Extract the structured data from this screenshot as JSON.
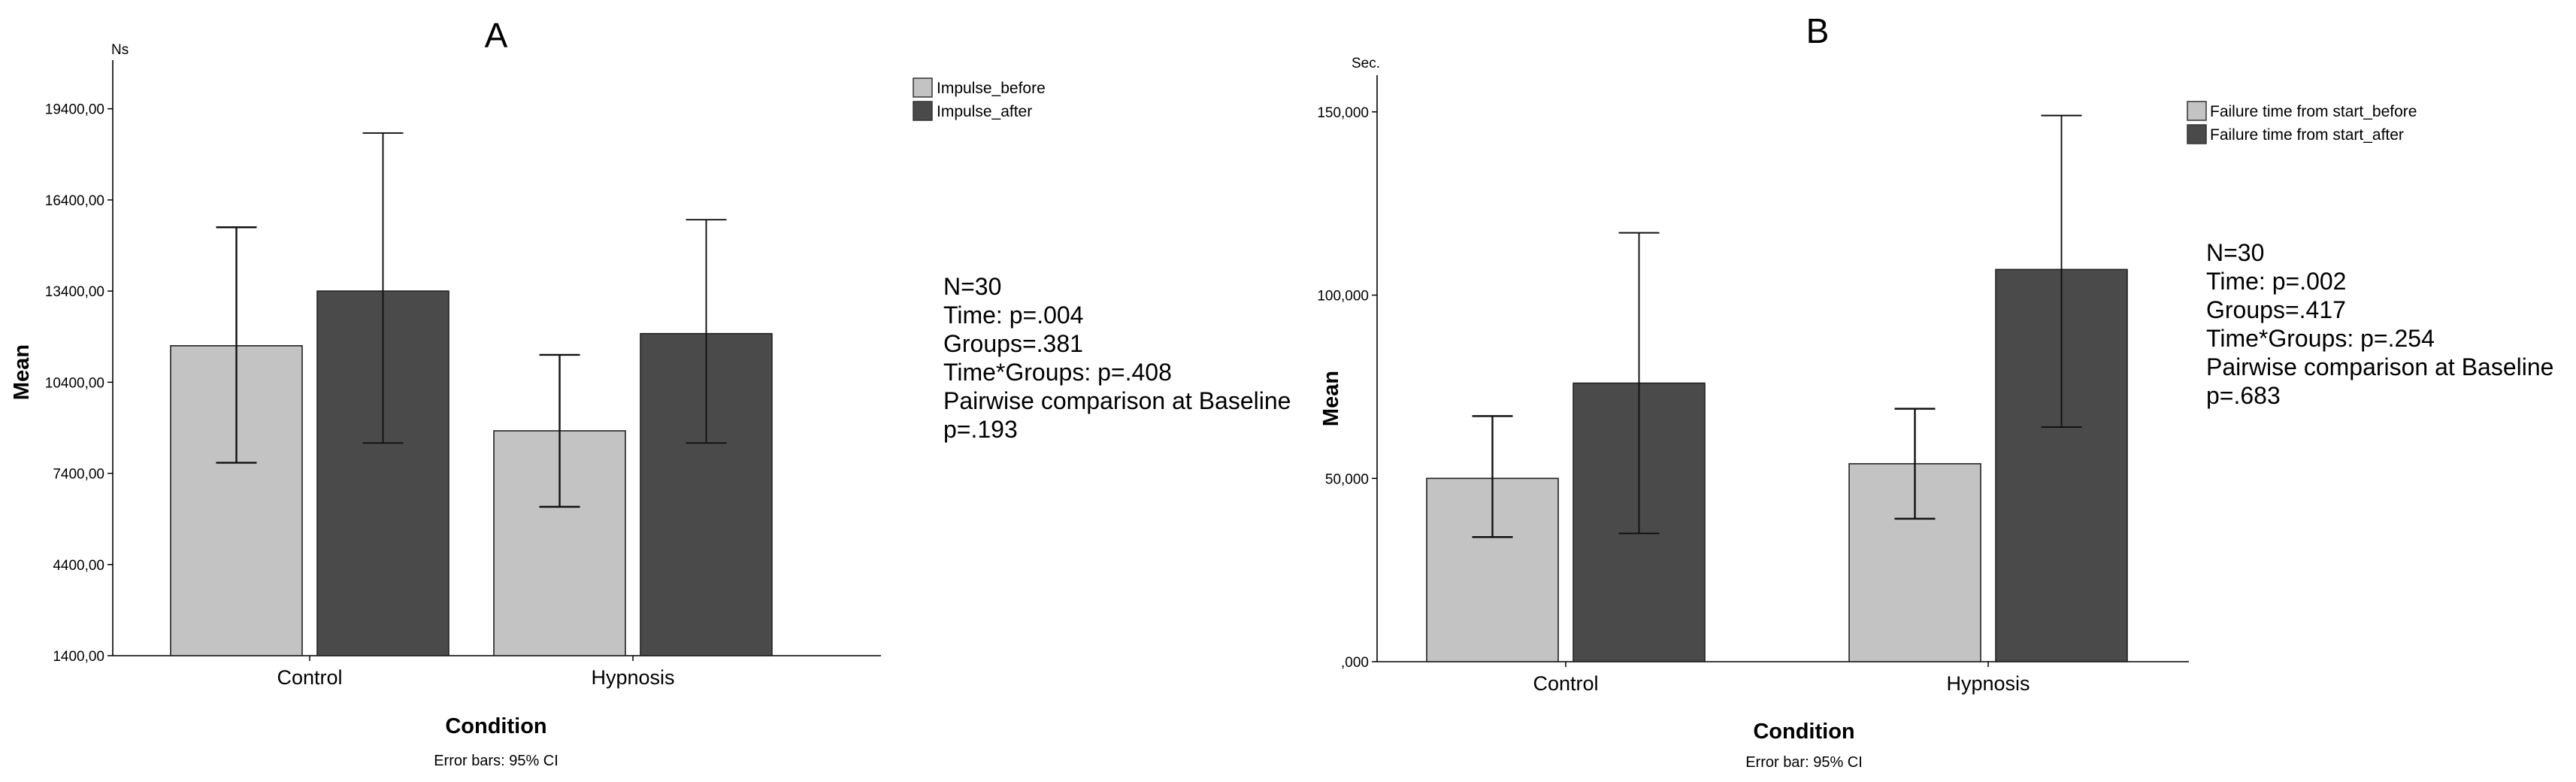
{
  "chart_data": [
    {
      "type": "bar",
      "title": "A",
      "unit": "Ns",
      "xlabel": "Condition",
      "ylabel": "Mean",
      "footnote": "Error bars: 95% CI",
      "ylim": [
        1400,
        21000
      ],
      "yticks": [
        "1400,00",
        "4400,00",
        "7400,00",
        "10400,00",
        "13400,00",
        "16400,00",
        "19400,00"
      ],
      "categories": [
        "Control",
        "Hypnosis"
      ],
      "series": [
        {
          "name": "Impulse_before",
          "color": "#c3c3c3",
          "values": [
            11600,
            8800
          ],
          "ci_low": [
            7750,
            6300
          ],
          "ci_high": [
            15500,
            11300
          ]
        },
        {
          "name": "Impulse_after",
          "color": "#4a4a4a",
          "values": [
            13400,
            12000
          ],
          "ci_low": [
            8400,
            8400
          ],
          "ci_high": [
            18600,
            15750
          ]
        }
      ],
      "stats": [
        "N=30",
        "Time: p=.004",
        "Groups=.381",
        "Time*Groups: p=.408",
        "Pairwise comparison at Baseline",
        "p=.193"
      ]
    },
    {
      "type": "bar",
      "title": "B",
      "unit": "Sec.",
      "xlabel": "Condition",
      "ylabel": "Mean",
      "footnote": "Error bar: 95% CI",
      "ylim": [
        0,
        160
      ],
      "yticks": [
        ",000",
        "50,000",
        "100,000",
        "150,000"
      ],
      "categories": [
        "Control",
        "Hypnosis"
      ],
      "series": [
        {
          "name": "Failure time from start_before",
          "color": "#c3c3c3",
          "values": [
            50,
            54
          ],
          "ci_low": [
            34,
            39
          ],
          "ci_high": [
            67,
            69
          ]
        },
        {
          "name": "Failure time from start_after",
          "color": "#4a4a4a",
          "values": [
            76,
            107
          ],
          "ci_low": [
            35,
            64
          ],
          "ci_high": [
            117,
            149
          ]
        }
      ],
      "stats": [
        "N=30",
        "Time: p=.002",
        "Groups=.417",
        "Time*Groups: p=.254",
        "Pairwise comparison at Baseline",
        "p=.683"
      ]
    }
  ]
}
